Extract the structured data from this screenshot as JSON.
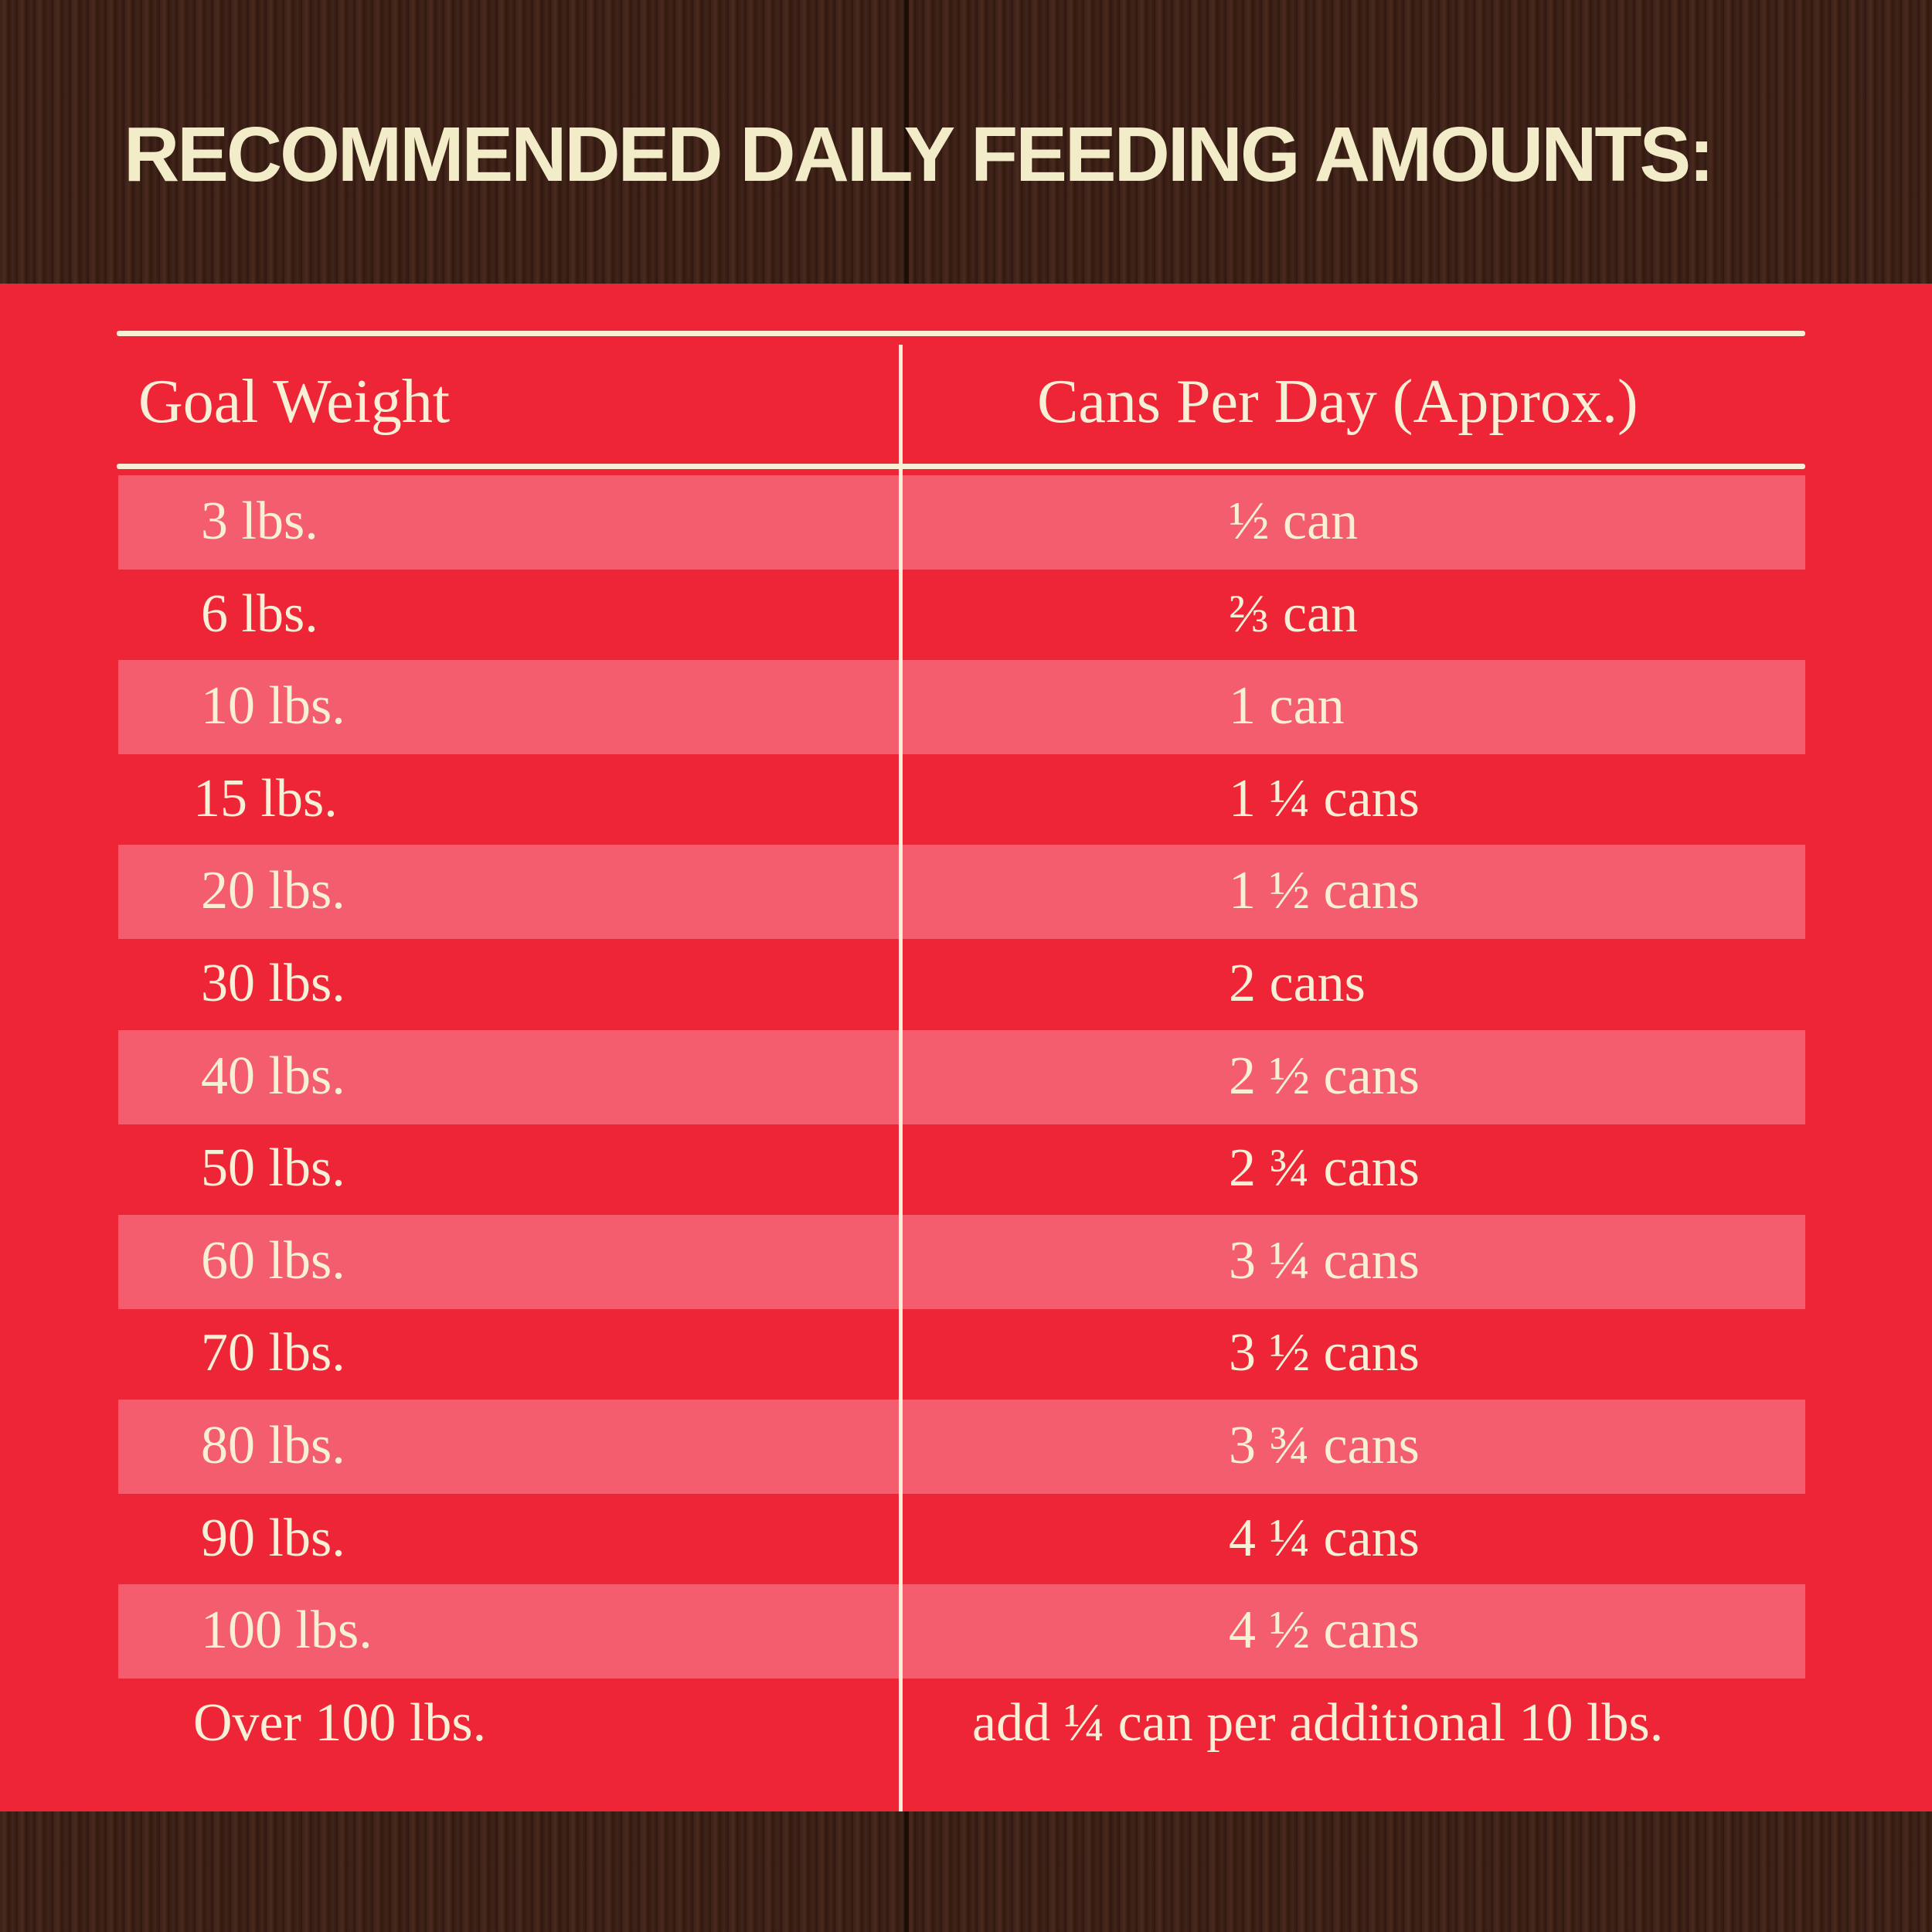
{
  "title": "RECOMMENDED DAILY FEEDING AMOUNTS:",
  "colors": {
    "background": "#3b2118",
    "panel": "#ee2537",
    "band": "#f35d6d",
    "text": "#f7efd6"
  },
  "table": {
    "headers": [
      "Goal Weight",
      "Cans Per Day (Approx.)"
    ],
    "rows": [
      {
        "weight": "3 lbs.",
        "cans": "½ can"
      },
      {
        "weight": "6 lbs.",
        "cans": "⅔ can"
      },
      {
        "weight": "10 lbs.",
        "cans": "1 can"
      },
      {
        "weight": "15 lbs.",
        "cans": "1 ¼ cans"
      },
      {
        "weight": "20 lbs.",
        "cans": "1 ½ cans"
      },
      {
        "weight": "30 lbs.",
        "cans": "2 cans"
      },
      {
        "weight": "40 lbs.",
        "cans": "2 ½ cans"
      },
      {
        "weight": "50 lbs.",
        "cans": "2 ¾ cans"
      },
      {
        "weight": "60 lbs.",
        "cans": "3 ¼ cans"
      },
      {
        "weight": "70 lbs.",
        "cans": "3 ½ cans"
      },
      {
        "weight": "80 lbs.",
        "cans": "3 ¾ cans"
      },
      {
        "weight": "90 lbs.",
        "cans": "4 ¼ cans"
      },
      {
        "weight": "100 lbs.",
        "cans": "4 ½ cans"
      },
      {
        "weight": "Over 100 lbs.",
        "cans": "add ¼ can per additional 10 lbs."
      }
    ]
  }
}
